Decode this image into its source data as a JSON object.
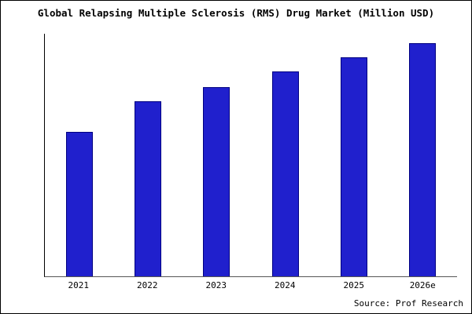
{
  "chart_data": {
    "type": "bar",
    "title": "Global Relapsing Multiple Sclerosis (RMS) Drug Market (Million USD)",
    "categories": [
      "2021",
      "2022",
      "2023",
      "2024",
      "2025",
      "2026e"
    ],
    "values": [
      62,
      75,
      81,
      88,
      94,
      100
    ],
    "xlabel": "",
    "ylabel": "",
    "ylim": [
      0,
      104
    ],
    "grid": false,
    "legend": "none",
    "bar_fill_color": "#2020cd",
    "bar_edge_color": "#000080",
    "source": "Source: Prof Research"
  }
}
